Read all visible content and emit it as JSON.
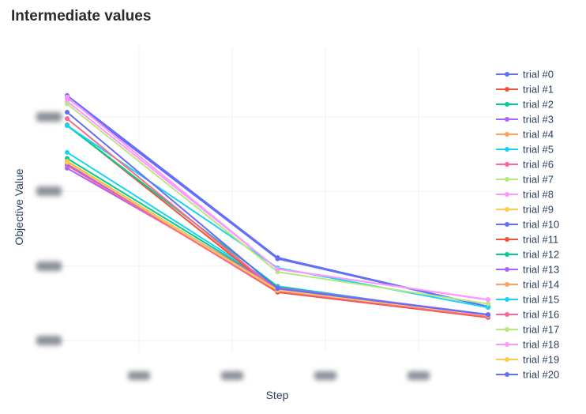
{
  "chart_data": {
    "type": "line",
    "title": "Intermediate values",
    "xlabel": "Step",
    "ylabel": "Objective Value",
    "x": [
      0,
      1,
      2
    ],
    "ylim": [
      0,
      1
    ],
    "grid": true,
    "legend_position": "right",
    "series": [
      {
        "name": "trial #0",
        "color": "#636efa",
        "values": [
          0.835,
          0.305,
          0.148
        ]
      },
      {
        "name": "trial #1",
        "color": "#ef553b",
        "values": [
          0.617,
          0.195,
          0.113
        ]
      },
      {
        "name": "trial #2",
        "color": "#00cc96",
        "values": [
          0.635,
          0.212,
          0.118
        ]
      },
      {
        "name": "trial #3",
        "color": "#ab63fa",
        "values": [
          0.603,
          0.207,
          0.121
        ]
      },
      {
        "name": "trial #4",
        "color": "#ffa15a",
        "values": [
          0.618,
          0.201,
          0.119
        ]
      },
      {
        "name": "trial #5",
        "color": "#19d3f3",
        "values": [
          0.655,
          0.215,
          0.117
        ]
      },
      {
        "name": "trial #6",
        "color": "#ff6692",
        "values": [
          0.612,
          0.198,
          0.115
        ]
      },
      {
        "name": "trial #7",
        "color": "#b6e880",
        "values": [
          0.745,
          0.214,
          0.116
        ]
      },
      {
        "name": "trial #8",
        "color": "#ff97ff",
        "values": [
          0.823,
          0.272,
          0.17
        ]
      },
      {
        "name": "trial #9",
        "color": "#fecb52",
        "values": [
          0.626,
          0.203,
          0.12
        ]
      },
      {
        "name": "trial #10",
        "color": "#636efa",
        "values": [
          0.842,
          0.309,
          0.148
        ]
      },
      {
        "name": "trial #11",
        "color": "#ef553b",
        "values": [
          0.745,
          0.196,
          0.112
        ]
      },
      {
        "name": "trial #12",
        "color": "#00cc96",
        "values": [
          0.743,
          0.214,
          0.117
        ]
      },
      {
        "name": "trial #13",
        "color": "#ab63fa",
        "values": [
          0.615,
          0.21,
          0.122
        ]
      },
      {
        "name": "trial #14",
        "color": "#ffa15a",
        "values": [
          0.624,
          0.204,
          0.119
        ]
      },
      {
        "name": "trial #15",
        "color": "#19d3f3",
        "values": [
          0.743,
          0.275,
          0.145
        ]
      },
      {
        "name": "trial #16",
        "color": "#ff6692",
        "values": [
          0.766,
          0.199,
          0.115
        ]
      },
      {
        "name": "trial #17",
        "color": "#b6e880",
        "values": [
          0.814,
          0.262,
          0.157
        ]
      },
      {
        "name": "trial #18",
        "color": "#ff97ff",
        "values": [
          0.837,
          0.271,
          0.171
        ]
      },
      {
        "name": "trial #19",
        "color": "#fecb52",
        "values": [
          0.622,
          0.202,
          0.119
        ]
      },
      {
        "name": "trial #20",
        "color": "#636efa",
        "values": [
          0.787,
          0.207,
          0.121
        ]
      }
    ]
  }
}
